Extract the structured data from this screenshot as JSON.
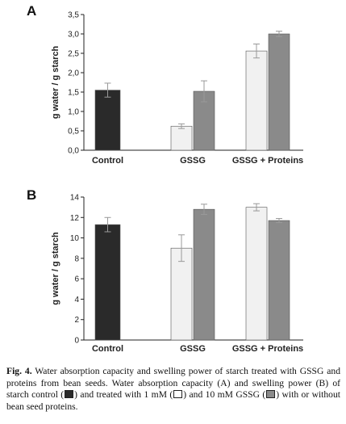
{
  "chart_data": [
    {
      "panel": "A",
      "type": "bar",
      "ylabel": "g water / g starch",
      "ylim": [
        0,
        3.5
      ],
      "yticks": [
        "0,0",
        "0,5",
        "1,0",
        "1,5",
        "2,0",
        "2,5",
        "3,0",
        "3,5"
      ],
      "categories": [
        "Control",
        "GSSG",
        "GSSG + Proteins"
      ],
      "series": [
        {
          "color": "#2a2a2a",
          "values": [
            1.55,
            null,
            null
          ],
          "errors": [
            0.18,
            null,
            null
          ]
        },
        {
          "color": "#f1f1f1",
          "values": [
            null,
            0.62,
            2.56
          ],
          "errors": [
            null,
            0.06,
            0.18
          ]
        },
        {
          "color": "#8a8a8a",
          "values": [
            null,
            1.52,
            3.0
          ],
          "errors": [
            null,
            0.27,
            0.07
          ]
        }
      ]
    },
    {
      "panel": "B",
      "type": "bar",
      "ylabel": "g water / g starch",
      "ylim": [
        0,
        14
      ],
      "yticks": [
        "0",
        "2",
        "4",
        "6",
        "8",
        "10",
        "12",
        "14"
      ],
      "categories": [
        "Control",
        "GSSG",
        "GSSG + Proteins"
      ],
      "series": [
        {
          "color": "#2a2a2a",
          "values": [
            11.3,
            null,
            null
          ],
          "errors": [
            0.7,
            null,
            null
          ]
        },
        {
          "color": "#f1f1f1",
          "values": [
            null,
            9.0,
            13.0
          ],
          "errors": [
            null,
            1.3,
            0.35
          ]
        },
        {
          "color": "#8a8a8a",
          "values": [
            null,
            12.8,
            11.7
          ],
          "errors": [
            null,
            0.5,
            0.2
          ]
        }
      ]
    }
  ],
  "caption": {
    "label": "Fig. 4.",
    "part1": " Water absorption capacity and swelling power of starch treated with GSSG and proteins from bean seeds. Water absorption capacity (A) and swelling power (B) of starch control (",
    "part2": ") and treated with 1 mM (",
    "part3": ") and 10 mM GSSG (",
    "part4": ") with or without bean seed proteins."
  }
}
